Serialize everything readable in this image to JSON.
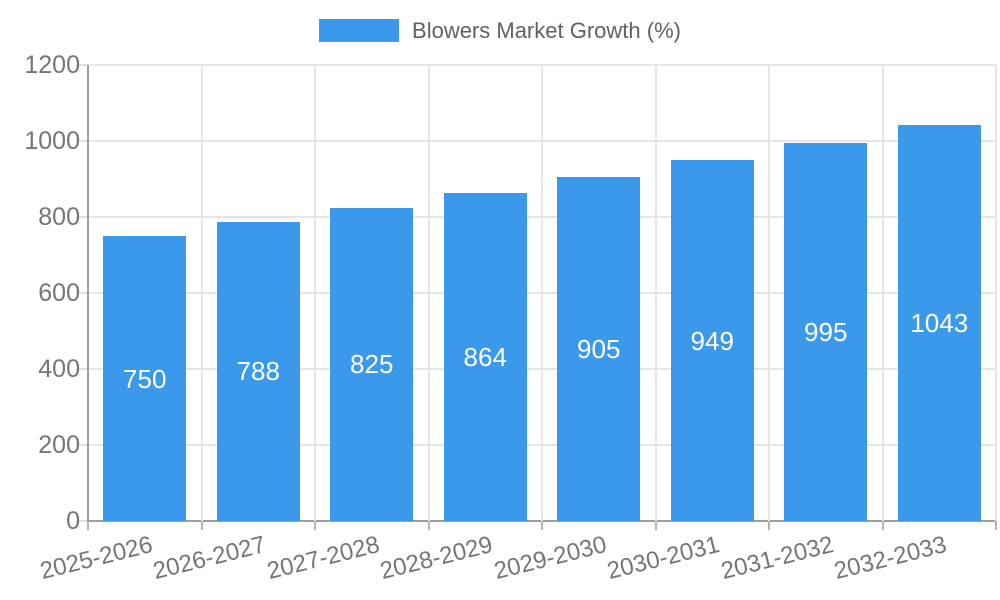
{
  "legend": {
    "label": "Blowers Market Growth (%)"
  },
  "chart_data": {
    "type": "bar",
    "title": "Blowers Market Growth (%)",
    "categories": [
      "2025-2026",
      "2026-2027",
      "2027-2028",
      "2028-2029",
      "2029-2030",
      "2030-2031",
      "2031-2032",
      "2032-2033"
    ],
    "values": [
      750,
      788,
      825,
      864,
      905,
      949,
      995,
      1043
    ],
    "series_name": "Blowers Market Growth (%)",
    "xlabel": "",
    "ylabel": "",
    "ylim": [
      0,
      1200
    ],
    "yticks": [
      0,
      200,
      400,
      600,
      800,
      1000,
      1200
    ],
    "grid": true,
    "legend_position": "top",
    "x_label_rotation_deg": -14,
    "colors": {
      "bar": "#3b99ec",
      "grid": "#e6e6e6",
      "axis": "#9e9e9e",
      "tick_label": "#757575",
      "value_label": "#ffffff",
      "legend_text": "#616161"
    }
  }
}
